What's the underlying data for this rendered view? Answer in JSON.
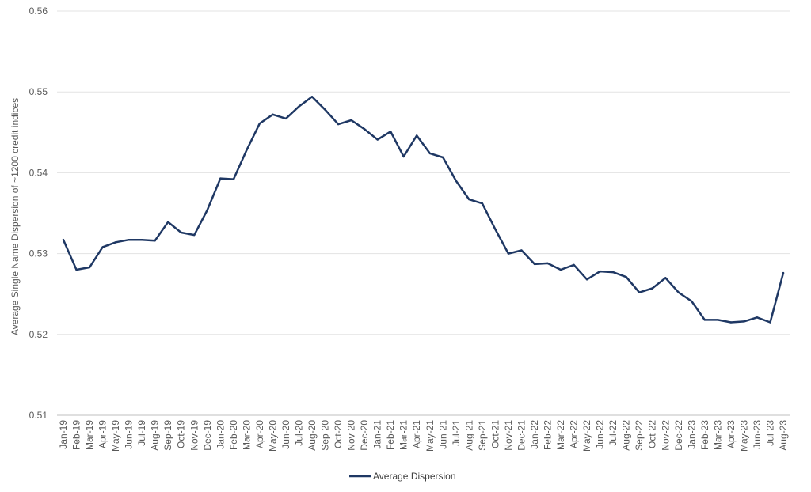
{
  "chart_data": {
    "type": "line",
    "title": "",
    "xlabel": "",
    "ylabel": "Average Single Name Dispersion of ~1200 credit indices",
    "ylim": [
      0.51,
      0.56
    ],
    "yticks": [
      "0.51",
      "0.52",
      "0.53",
      "0.54",
      "0.55",
      "0.56"
    ],
    "grid": true,
    "legend_position": "bottom",
    "categories": [
      "Jan-19",
      "Feb-19",
      "Mar-19",
      "Apr-19",
      "May-19",
      "Jun-19",
      "Jul-19",
      "Aug-19",
      "Sep-19",
      "Oct-19",
      "Nov-19",
      "Dec-19",
      "Jan-20",
      "Feb-20",
      "Mar-20",
      "Apr-20",
      "May-20",
      "Jun-20",
      "Jul-20",
      "Aug-20",
      "Sep-20",
      "Oct-20",
      "Nov-20",
      "Dec-20",
      "Jan-21",
      "Feb-21",
      "Mar-21",
      "Apr-21",
      "May-21",
      "Jun-21",
      "Jul-21",
      "Aug-21",
      "Sep-21",
      "Oct-21",
      "Nov-21",
      "Dec-21",
      "Jan-22",
      "Feb-22",
      "Mar-22",
      "Apr-22",
      "May-22",
      "Jun-22",
      "Jul-22",
      "Aug-22",
      "Sep-22",
      "Oct-22",
      "Nov-22",
      "Dec-22",
      "Jan-23",
      "Feb-23",
      "Mar-23",
      "Apr-23",
      "May-23",
      "Jun-23",
      "Jul-23",
      "Aug-23"
    ],
    "series": [
      {
        "name": "Average Dispersion",
        "color": "#1f3864",
        "values": [
          0.5317,
          0.528,
          0.5283,
          0.5308,
          0.5314,
          0.5317,
          0.5317,
          0.5316,
          0.5339,
          0.5326,
          0.5323,
          0.5354,
          0.5393,
          0.5392,
          0.5428,
          0.5461,
          0.5472,
          0.5467,
          0.5482,
          0.5494,
          0.5478,
          0.546,
          0.5465,
          0.5454,
          0.5441,
          0.5451,
          0.542,
          0.5446,
          0.5424,
          0.5419,
          0.539,
          0.5367,
          0.5362,
          0.533,
          0.53,
          0.5304,
          0.5287,
          0.5288,
          0.528,
          0.5286,
          0.5268,
          0.5278,
          0.5277,
          0.5271,
          0.5252,
          0.5257,
          0.527,
          0.5252,
          0.5241,
          0.5218,
          0.5218,
          0.5215,
          0.5216,
          0.5221,
          0.5215,
          0.5276
        ]
      }
    ]
  }
}
